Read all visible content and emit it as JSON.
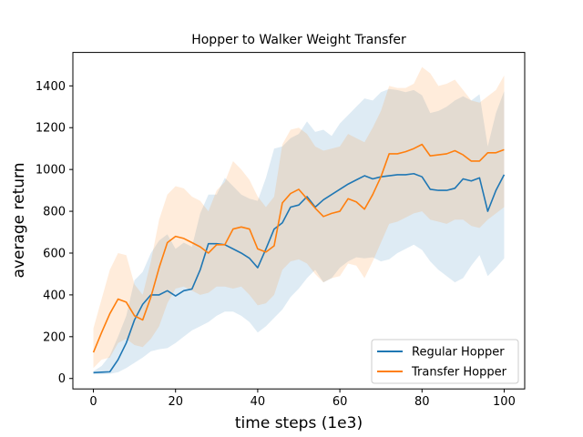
{
  "chart_data": {
    "type": "line",
    "title": "Hopper to Walker Weight Transfer",
    "xlabel": "time steps (1e3)",
    "ylabel": "average return",
    "xlim": [
      -5,
      105
    ],
    "ylim": [
      -50,
      1560
    ],
    "xticks": [
      0,
      20,
      40,
      60,
      80,
      100
    ],
    "yticks": [
      0,
      200,
      400,
      600,
      800,
      1000,
      1200,
      1400
    ],
    "grid": false,
    "legend_position": "lower-right",
    "x": [
      0,
      2,
      4,
      6,
      8,
      10,
      12,
      14,
      16,
      18,
      20,
      22,
      24,
      26,
      28,
      30,
      32,
      34,
      36,
      38,
      40,
      42,
      44,
      46,
      48,
      50,
      52,
      54,
      56,
      58,
      60,
      62,
      64,
      66,
      68,
      70,
      72,
      74,
      76,
      78,
      80,
      82,
      84,
      86,
      88,
      90,
      92,
      94,
      96,
      98,
      100
    ],
    "series": [
      {
        "name": "Regular Hopper",
        "color": "#1f77b4",
        "band_alpha": 0.15,
        "values": [
          28,
          30,
          32,
          90,
          170,
          280,
          355,
          400,
          400,
          420,
          395,
          420,
          428,
          520,
          645,
          645,
          640,
          620,
          600,
          575,
          530,
          620,
          715,
          745,
          820,
          830,
          870,
          820,
          855,
          880,
          905,
          930,
          950,
          970,
          955,
          965,
          970,
          975,
          975,
          980,
          965,
          905,
          900,
          900,
          910,
          955,
          945,
          960,
          800,
          900,
          975
        ],
        "lower": [
          20,
          20,
          22,
          30,
          50,
          75,
          100,
          130,
          140,
          145,
          170,
          200,
          230,
          250,
          270,
          300,
          320,
          320,
          300,
          270,
          220,
          250,
          290,
          330,
          390,
          430,
          480,
          520,
          460,
          480,
          530,
          560,
          580,
          575,
          580,
          560,
          570,
          600,
          620,
          640,
          615,
          560,
          520,
          490,
          460,
          480,
          540,
          590,
          490,
          530,
          575
        ],
        "upper": [
          35,
          60,
          110,
          200,
          300,
          470,
          510,
          600,
          660,
          690,
          620,
          650,
          630,
          790,
          880,
          880,
          960,
          920,
          880,
          860,
          850,
          960,
          1100,
          1110,
          1150,
          1170,
          1230,
          1180,
          1190,
          1160,
          1220,
          1260,
          1300,
          1340,
          1330,
          1370,
          1385,
          1380,
          1370,
          1380,
          1355,
          1270,
          1280,
          1300,
          1330,
          1350,
          1330,
          1360,
          1110,
          1270,
          1375
        ]
      },
      {
        "name": "Transfer Hopper",
        "color": "#ff7f0e",
        "band_alpha": 0.15,
        "values": [
          125,
          220,
          310,
          380,
          365,
          300,
          280,
          390,
          530,
          650,
          680,
          670,
          650,
          630,
          600,
          640,
          640,
          715,
          725,
          715,
          620,
          605,
          635,
          840,
          885,
          905,
          860,
          815,
          775,
          790,
          800,
          860,
          845,
          810,
          880,
          965,
          1075,
          1075,
          1085,
          1100,
          1120,
          1065,
          1070,
          1075,
          1090,
          1070,
          1040,
          1040,
          1080,
          1080,
          1095
        ],
        "lower": [
          50,
          90,
          100,
          170,
          190,
          160,
          150,
          190,
          250,
          360,
          430,
          440,
          420,
          400,
          410,
          440,
          440,
          430,
          440,
          400,
          350,
          360,
          400,
          520,
          560,
          570,
          550,
          500,
          460,
          480,
          490,
          550,
          540,
          480,
          560,
          650,
          740,
          750,
          770,
          790,
          800,
          760,
          750,
          740,
          760,
          760,
          730,
          720,
          760,
          790,
          820
        ],
        "upper": [
          240,
          380,
          520,
          600,
          590,
          450,
          400,
          560,
          760,
          880,
          920,
          910,
          870,
          850,
          800,
          900,
          940,
          1040,
          1000,
          950,
          870,
          820,
          870,
          1120,
          1190,
          1200,
          1170,
          1110,
          1090,
          1100,
          1110,
          1170,
          1150,
          1130,
          1200,
          1280,
          1400,
          1390,
          1390,
          1410,
          1490,
          1460,
          1400,
          1410,
          1430,
          1380,
          1330,
          1320,
          1350,
          1380,
          1450
        ]
      }
    ]
  }
}
